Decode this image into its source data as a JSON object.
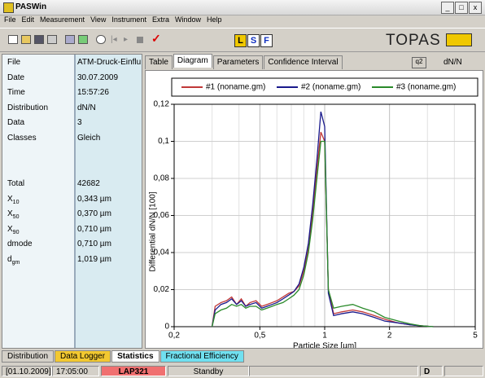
{
  "window": {
    "title": "PASWin",
    "controls": [
      "_",
      "□",
      "x"
    ]
  },
  "menu": [
    "File",
    "Edit",
    "Measurement",
    "View",
    "Instrument",
    "Extra",
    "Window",
    "Help"
  ],
  "toolbar": {
    "modes": [
      "L",
      "S",
      "F"
    ],
    "logo": "TOPAS"
  },
  "properties": [
    {
      "label": "File",
      "value": "ATM-Druck-Einflus"
    },
    {
      "label": "Date",
      "value": "30.07.2009"
    },
    {
      "label": "Time",
      "value": "15:57:26"
    },
    {
      "label": "Distribution",
      "value": "dN/N"
    },
    {
      "label": "Data",
      "value": "3"
    },
    {
      "label": "Classes",
      "value": "Gleich"
    }
  ],
  "statistics": [
    {
      "label": "Total",
      "value": "42682"
    },
    {
      "label": "X",
      "sub": "10",
      "value": "0,343 µm"
    },
    {
      "label": "X",
      "sub": "50",
      "value": "0,370 µm"
    },
    {
      "label": "X",
      "sub": "90",
      "value": "0,710 µm"
    },
    {
      "label": "dmode",
      "value": "0,710 µm"
    },
    {
      "label": "d",
      "sub": "gm",
      "value": "1,019 µm"
    }
  ],
  "tabs": [
    "Table",
    "Diagram",
    "Parameters",
    "Confidence Interval"
  ],
  "active_tab": 1,
  "display": {
    "icon_label": "q2",
    "unit": "dN/N"
  },
  "chart_data": {
    "type": "line",
    "ylabel": "Differential dN/N [100]",
    "xlabel": "Particle Size [µm]",
    "xscale": "log",
    "grid": true,
    "legend": "top",
    "xlim": [
      0.2,
      5
    ],
    "xticks": [
      {
        "value": 0.2,
        "label": "0,2"
      },
      {
        "value": 0.5,
        "label": "0,5"
      },
      1,
      2,
      5
    ],
    "x_minor_ticks": [
      0.3,
      0.4,
      0.6,
      0.7,
      0.8,
      0.9,
      3,
      4
    ],
    "ylim": [
      0,
      0.12
    ],
    "yticks": [
      0,
      {
        "value": 0.02,
        "label": "0,02"
      },
      {
        "value": 0.04,
        "label": "0,04"
      },
      {
        "value": 0.06,
        "label": "0,06"
      },
      {
        "value": 0.08,
        "label": "0,08"
      },
      {
        "value": 0.1,
        "label": "0,1"
      },
      {
        "value": 0.12,
        "label": "0,12"
      }
    ],
    "x": [
      0.3,
      0.31,
      0.33,
      0.35,
      0.37,
      0.39,
      0.41,
      0.43,
      0.45,
      0.48,
      0.51,
      0.54,
      0.57,
      0.6,
      0.64,
      0.68,
      0.72,
      0.76,
      0.8,
      0.84,
      0.88,
      0.92,
      0.96,
      1.0,
      1.04,
      1.1,
      1.2,
      1.35,
      1.5,
      1.7,
      1.9,
      2.2,
      2.5,
      2.8,
      3.2
    ],
    "series": [
      {
        "name": "#1 (noname.gm)",
        "color": "#c03838",
        "values": [
          0,
          0.011,
          0.013,
          0.014,
          0.016,
          0.012,
          0.015,
          0.011,
          0.013,
          0.014,
          0.011,
          0.012,
          0.013,
          0.014,
          0.016,
          0.018,
          0.019,
          0.022,
          0.03,
          0.042,
          0.062,
          0.085,
          0.105,
          0.1,
          0.02,
          0.007,
          0.008,
          0.009,
          0.008,
          0.006,
          0.004,
          0.002,
          0.001,
          0.0005,
          0
        ]
      },
      {
        "name": "#2 (noname.gm)",
        "color": "#1a1a8c",
        "values": [
          0,
          0.009,
          0.012,
          0.013,
          0.015,
          0.012,
          0.014,
          0.011,
          0.012,
          0.013,
          0.01,
          0.011,
          0.012,
          0.013,
          0.015,
          0.017,
          0.019,
          0.023,
          0.032,
          0.045,
          0.066,
          0.09,
          0.116,
          0.108,
          0.018,
          0.006,
          0.007,
          0.008,
          0.007,
          0.005,
          0.003,
          0.002,
          0.001,
          0.0005,
          0
        ]
      },
      {
        "name": "#3 (noname.gm)",
        "color": "#2a8a2a",
        "values": [
          0,
          0.007,
          0.009,
          0.01,
          0.012,
          0.011,
          0.012,
          0.01,
          0.011,
          0.011,
          0.009,
          0.01,
          0.011,
          0.012,
          0.013,
          0.015,
          0.017,
          0.02,
          0.028,
          0.04,
          0.058,
          0.08,
          0.1,
          0.1,
          0.02,
          0.01,
          0.011,
          0.012,
          0.01,
          0.008,
          0.005,
          0.003,
          0.0015,
          0.0005,
          0
        ]
      }
    ]
  },
  "bottom_tabs": [
    "Distribution",
    "Data Logger",
    "Statistics",
    "Fractional Efficiency"
  ],
  "active_bottom_tab": 2,
  "status": {
    "date": "[01.10.2009]",
    "time": "17:05:00",
    "device": "LAP321",
    "state": "Standby",
    "mode": "D"
  }
}
